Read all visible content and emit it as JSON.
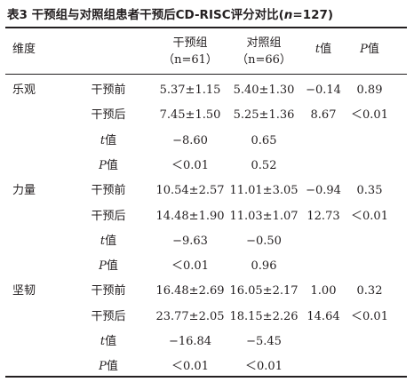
{
  "title": {
    "prefix": "表3  干预组与对照组患者干预后CD-RISC评分对比(",
    "n_symbol": "n",
    "suffix": "=127)"
  },
  "header": {
    "dimension": "维度",
    "intervention_group": "干预组",
    "intervention_n": "（n=61）",
    "control_group": "对照组",
    "control_n": "（n=66）",
    "t_symbol": "t",
    "t_label": "值",
    "p_symbol": "P",
    "p_label": "值"
  },
  "rows": [
    {
      "dimension": "乐观",
      "time": "干预前",
      "italic": "",
      "intervention": "5.37±1.15",
      "control": "5.40±1.30",
      "t": "−0.14",
      "p": "0.89"
    },
    {
      "dimension": "",
      "time": "干预后",
      "italic": "",
      "intervention": "7.45±1.50",
      "control": "5.25±1.36",
      "t": "8.67",
      "p": "＜0.01"
    },
    {
      "dimension": "",
      "time": "值",
      "italic": "t",
      "intervention": "−8.60",
      "control": "0.65",
      "t": "",
      "p": ""
    },
    {
      "dimension": "",
      "time": "值",
      "italic": "P",
      "intervention": "＜0.01",
      "control": "0.52",
      "t": "",
      "p": ""
    },
    {
      "dimension": "力量",
      "time": "干预前",
      "italic": "",
      "intervention": "10.54±2.57",
      "control": "11.01±3.05",
      "t": "−0.94",
      "p": "0.35"
    },
    {
      "dimension": "",
      "time": "干预后",
      "italic": "",
      "intervention": "14.48±1.90",
      "control": "11.03±1.07",
      "t": "12.73",
      "p": "＜0.01"
    },
    {
      "dimension": "",
      "time": "值",
      "italic": "t",
      "intervention": "−9.63",
      "control": "−0.50",
      "t": "",
      "p": ""
    },
    {
      "dimension": "",
      "time": "值",
      "italic": "P",
      "intervention": "＜0.01",
      "control": "0.96",
      "t": "",
      "p": ""
    },
    {
      "dimension": "坚韧",
      "time": "干预前",
      "italic": "",
      "intervention": "16.48±2.69",
      "control": "16.05±2.17",
      "t": "1.00",
      "p": "0.32"
    },
    {
      "dimension": "",
      "time": "干预后",
      "italic": "",
      "intervention": "23.77±2.05",
      "control": "18.15±2.26",
      "t": "14.64",
      "p": "＜0.01"
    },
    {
      "dimension": "",
      "time": "值",
      "italic": "t",
      "intervention": "−16.84",
      "control": "−5.45",
      "t": "",
      "p": ""
    },
    {
      "dimension": "",
      "time": "值",
      "italic": "P",
      "intervention": "＜0.01",
      "control": "＜0.01",
      "t": "",
      "p": ""
    }
  ]
}
